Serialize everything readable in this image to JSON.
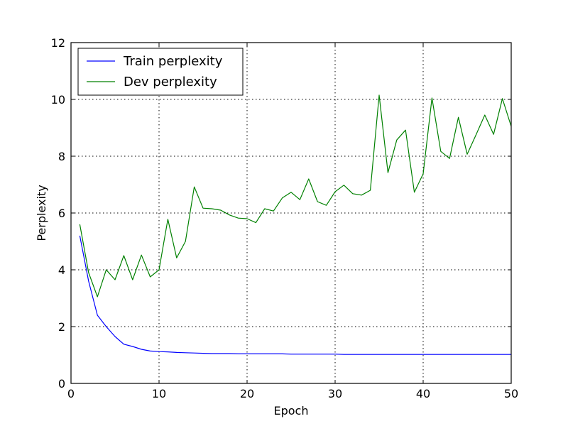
{
  "chart_data": {
    "type": "line",
    "title": "",
    "xlabel": "Epoch",
    "ylabel": "Perplexity",
    "xlim": [
      0,
      50
    ],
    "ylim": [
      0,
      12
    ],
    "xticks": [
      0,
      10,
      20,
      30,
      40,
      50
    ],
    "yticks": [
      0,
      2,
      4,
      6,
      8,
      10,
      12
    ],
    "grid": true,
    "legend_position": "top-left",
    "x": [
      1,
      2,
      3,
      4,
      5,
      6,
      7,
      8,
      9,
      10,
      11,
      12,
      13,
      14,
      15,
      16,
      17,
      18,
      19,
      20,
      21,
      22,
      23,
      24,
      25,
      26,
      27,
      28,
      29,
      30,
      31,
      32,
      33,
      34,
      35,
      36,
      37,
      38,
      39,
      40,
      41,
      42,
      43,
      44,
      45,
      46,
      47,
      48,
      49,
      50
    ],
    "series": [
      {
        "name": "Train perplexity",
        "color": "#0000ff",
        "values": [
          5.2,
          3.6,
          2.4,
          2.0,
          1.65,
          1.38,
          1.3,
          1.2,
          1.14,
          1.12,
          1.11,
          1.09,
          1.08,
          1.07,
          1.06,
          1.05,
          1.05,
          1.05,
          1.04,
          1.04,
          1.04,
          1.04,
          1.04,
          1.04,
          1.03,
          1.03,
          1.03,
          1.03,
          1.03,
          1.03,
          1.02,
          1.02,
          1.02,
          1.02,
          1.02,
          1.02,
          1.02,
          1.02,
          1.02,
          1.02,
          1.02,
          1.02,
          1.02,
          1.02,
          1.02,
          1.02,
          1.02,
          1.02,
          1.02,
          1.02
        ]
      },
      {
        "name": "Dev perplexity",
        "color": "#008000",
        "values": [
          5.6,
          3.9,
          3.05,
          4.0,
          3.65,
          4.5,
          3.65,
          4.52,
          3.75,
          4.0,
          5.78,
          4.42,
          5.0,
          6.92,
          6.17,
          6.15,
          6.1,
          5.93,
          5.82,
          5.8,
          5.66,
          6.15,
          6.07,
          6.53,
          6.73,
          6.47,
          7.2,
          6.4,
          6.27,
          6.75,
          6.98,
          6.68,
          6.63,
          6.8,
          10.15,
          7.42,
          8.57,
          8.92,
          6.73,
          7.38,
          10.05,
          8.17,
          7.92,
          9.37,
          8.07,
          8.75,
          9.45,
          8.77,
          10.03,
          9.05
        ]
      }
    ]
  }
}
